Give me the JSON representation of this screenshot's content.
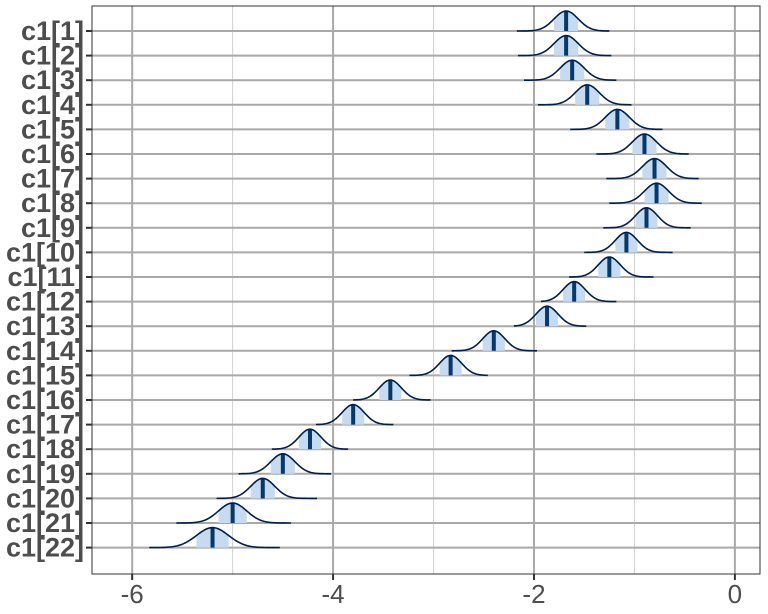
{
  "chart_data": {
    "type": "ridgeline-density",
    "title": "",
    "xlabel": "",
    "ylabel": "",
    "xlim": [
      -6.4,
      0.25
    ],
    "x_ticks": [
      -6,
      -4,
      -2,
      0
    ],
    "x_tick_labels": [
      "-6",
      "-4",
      "-2",
      "0"
    ],
    "grid": true,
    "colors": {
      "outline": "#011f4b",
      "median": "#03396c",
      "interval_fill": "#c6dbef",
      "grid_major": "#a9a9a9",
      "grid_minor": "#d0d0d0",
      "axis_text": "#4d4d4d"
    },
    "series": [
      {
        "label": "c1[1]",
        "median": -1.68,
        "sd": 0.12,
        "lo": -2.17,
        "hi": -1.25
      },
      {
        "label": "c1[2]",
        "median": -1.68,
        "sd": 0.12,
        "lo": -2.16,
        "hi": -1.23
      },
      {
        "label": "c1[3]",
        "median": -1.62,
        "sd": 0.12,
        "lo": -2.1,
        "hi": -1.18
      },
      {
        "label": "c1[4]",
        "median": -1.47,
        "sd": 0.12,
        "lo": -1.96,
        "hi": -1.03
      },
      {
        "label": "c1[5]",
        "median": -1.17,
        "sd": 0.12,
        "lo": -1.64,
        "hi": -0.72
      },
      {
        "label": "c1[6]",
        "median": -0.9,
        "sd": 0.12,
        "lo": -1.38,
        "hi": -0.46
      },
      {
        "label": "c1[7]",
        "median": -0.8,
        "sd": 0.12,
        "lo": -1.28,
        "hi": -0.36
      },
      {
        "label": "c1[8]",
        "median": -0.78,
        "sd": 0.12,
        "lo": -1.25,
        "hi": -0.33
      },
      {
        "label": "c1[9]",
        "median": -0.88,
        "sd": 0.11,
        "lo": -1.31,
        "hi": -0.44
      },
      {
        "label": "c1[10]",
        "median": -1.08,
        "sd": 0.11,
        "lo": -1.5,
        "hi": -0.62
      },
      {
        "label": "c1[11]",
        "median": -1.25,
        "sd": 0.11,
        "lo": -1.65,
        "hi": -0.81
      },
      {
        "label": "c1[12]",
        "median": -1.6,
        "sd": 0.11,
        "lo": -1.93,
        "hi": -1.18
      },
      {
        "label": "c1[13]",
        "median": -1.87,
        "sd": 0.11,
        "lo": -2.2,
        "hi": -1.48
      },
      {
        "label": "c1[14]",
        "median": -2.4,
        "sd": 0.11,
        "lo": -2.82,
        "hi": -1.97
      },
      {
        "label": "c1[15]",
        "median": -2.83,
        "sd": 0.11,
        "lo": -3.24,
        "hi": -2.46
      },
      {
        "label": "c1[16]",
        "median": -3.43,
        "sd": 0.11,
        "lo": -3.8,
        "hi": -3.03
      },
      {
        "label": "c1[17]",
        "median": -3.8,
        "sd": 0.11,
        "lo": -4.17,
        "hi": -3.4
      },
      {
        "label": "c1[18]",
        "median": -4.23,
        "sd": 0.11,
        "lo": -4.61,
        "hi": -3.85
      },
      {
        "label": "c1[19]",
        "median": -4.5,
        "sd": 0.12,
        "lo": -4.94,
        "hi": -4.02
      },
      {
        "label": "c1[20]",
        "median": -4.7,
        "sd": 0.12,
        "lo": -5.16,
        "hi": -4.16
      },
      {
        "label": "c1[21]",
        "median": -5.0,
        "sd": 0.14,
        "lo": -5.56,
        "hi": -4.42
      },
      {
        "label": "c1[22]",
        "median": -5.2,
        "sd": 0.16,
        "lo": -5.83,
        "hi": -4.53
      }
    ]
  }
}
